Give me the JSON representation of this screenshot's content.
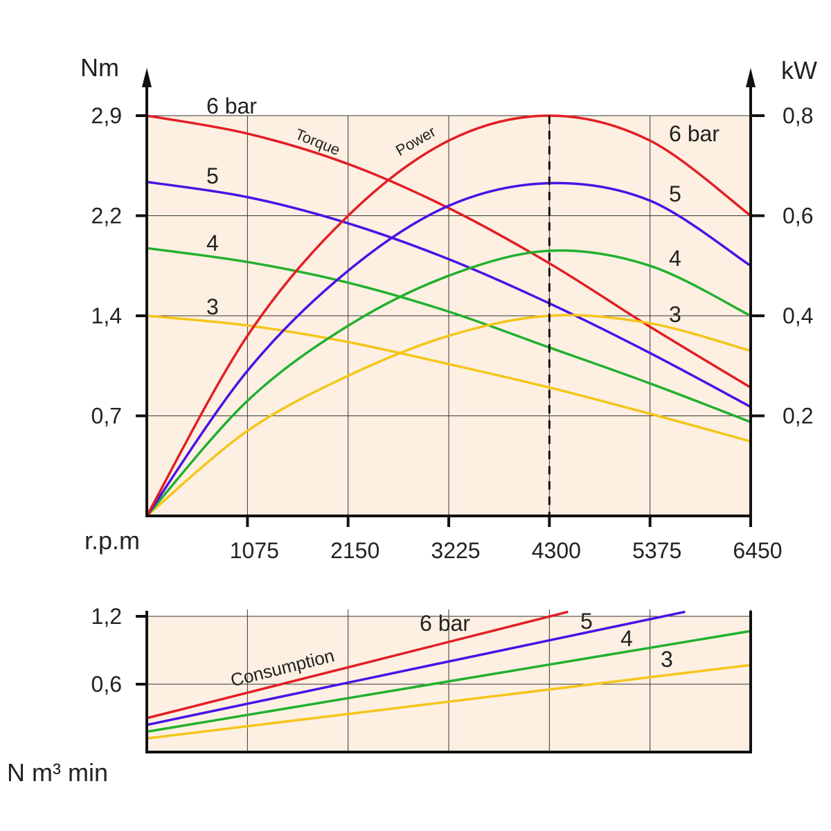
{
  "chart_data": [
    {
      "type": "line",
      "title": "",
      "xlabel": "r.p.m",
      "ylabel_left": "Nm",
      "ylabel_right": "kW",
      "xlim": [
        0,
        6450
      ],
      "ylim_left": [
        0,
        2.9
      ],
      "ylim_right": [
        0,
        0.8
      ],
      "x_ticks": [
        "1075",
        "2150",
        "3225",
        "4300",
        "5375",
        "6450"
      ],
      "y_ticks_left": [
        "0,7",
        "1,4",
        "2,2",
        "2,9"
      ],
      "y_ticks_right": [
        "0,2",
        "0,4",
        "0,6",
        "0,8"
      ],
      "reference_line_x": 4300,
      "annotations": [
        "Torque",
        "Power"
      ],
      "grid": true,
      "colors": {
        "6 bar": "#e31e24",
        "5": "#4a12e6",
        "4": "#22b02e",
        "3": "#f5c518"
      },
      "torque_series": [
        {
          "label": "6 bar",
          "x": [
            0,
            1075,
            2150,
            3225,
            4300,
            5375,
            6450
          ],
          "y": [
            2.9,
            2.77,
            2.55,
            2.23,
            1.83,
            1.37,
            0.93
          ]
        },
        {
          "label": "5",
          "x": [
            0,
            1075,
            2150,
            3225,
            4300,
            5375,
            6450
          ],
          "y": [
            2.42,
            2.31,
            2.12,
            1.86,
            1.54,
            1.18,
            0.79
          ]
        },
        {
          "label": "4",
          "x": [
            0,
            1075,
            2150,
            3225,
            4300,
            5375,
            6450
          ],
          "y": [
            1.94,
            1.84,
            1.69,
            1.48,
            1.22,
            0.96,
            0.68
          ]
        },
        {
          "label": "3",
          "x": [
            0,
            1075,
            2150,
            3225,
            4300,
            5375,
            6450
          ],
          "y": [
            1.45,
            1.38,
            1.26,
            1.1,
            0.93,
            0.74,
            0.54
          ]
        }
      ],
      "power_series": [
        {
          "label": "6 bar",
          "x": [
            0,
            1075,
            2150,
            3225,
            4300,
            5375,
            6450
          ],
          "y": [
            0,
            0.36,
            0.6,
            0.75,
            0.8,
            0.75,
            0.6
          ]
        },
        {
          "label": "5",
          "x": [
            0,
            1075,
            2150,
            3225,
            4300,
            5375,
            6450
          ],
          "y": [
            0,
            0.29,
            0.49,
            0.62,
            0.665,
            0.63,
            0.5
          ]
        },
        {
          "label": "4",
          "x": [
            0,
            1075,
            2150,
            3225,
            4300,
            5375,
            6450
          ],
          "y": [
            0,
            0.23,
            0.38,
            0.48,
            0.53,
            0.5,
            0.4
          ]
        },
        {
          "label": "3",
          "x": [
            0,
            1075,
            2150,
            3225,
            4300,
            5375,
            6450
          ],
          "y": [
            0,
            0.17,
            0.28,
            0.36,
            0.4,
            0.385,
            0.33
          ]
        }
      ]
    },
    {
      "type": "line",
      "title": "",
      "ylabel": "N m³ min",
      "xlim": [
        0,
        6450
      ],
      "ylim": [
        0,
        1.2
      ],
      "y_ticks": [
        "0,6",
        "1,2"
      ],
      "annotation": "Consumption",
      "grid": true,
      "series": [
        {
          "label": "6 bar",
          "x": [
            0,
            4500
          ],
          "y": [
            0.3,
            1.24
          ]
        },
        {
          "label": "5",
          "x": [
            0,
            5750
          ],
          "y": [
            0.24,
            1.24
          ]
        },
        {
          "label": "4",
          "x": [
            0,
            6450
          ],
          "y": [
            0.18,
            1.07
          ]
        },
        {
          "label": "3",
          "x": [
            0,
            6450
          ],
          "y": [
            0.12,
            0.77
          ]
        }
      ]
    }
  ]
}
